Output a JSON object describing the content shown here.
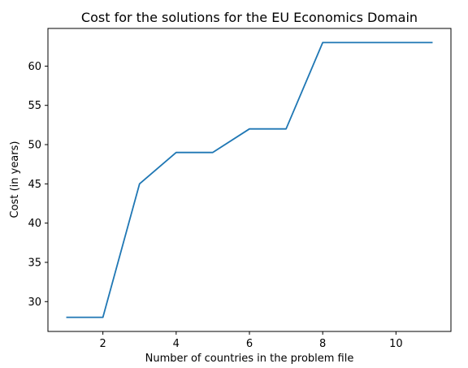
{
  "chart_data": {
    "type": "line",
    "title": "Cost for the solutions for the EU Economics Domain",
    "xlabel": "Number of countries in the problem file",
    "ylabel": "Cost (in years)",
    "xlim": [
      0.5,
      11.5
    ],
    "ylim": [
      26.2,
      64.8
    ],
    "xticks": [
      2,
      4,
      6,
      8,
      10
    ],
    "yticks": [
      30,
      35,
      40,
      45,
      50,
      55,
      60
    ],
    "grid": false,
    "series": [
      {
        "color": "#1f77b4",
        "x": [
          1,
          2,
          3,
          4,
          5,
          6,
          7,
          8,
          9,
          10,
          11
        ],
        "values": [
          28,
          28,
          45,
          49,
          49,
          52,
          52,
          63,
          63,
          63,
          63
        ]
      }
    ]
  }
}
